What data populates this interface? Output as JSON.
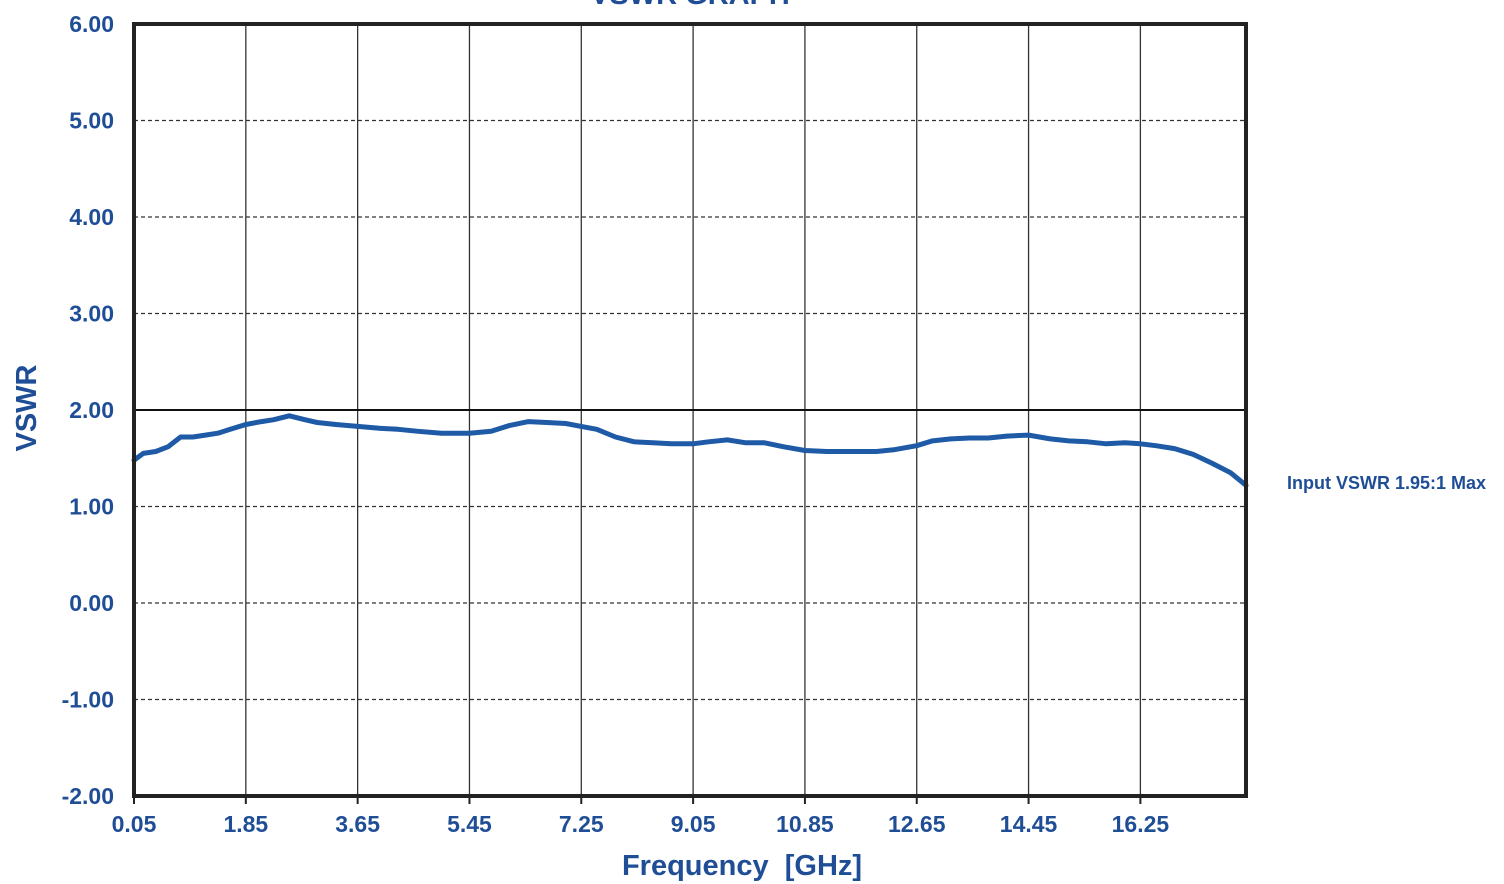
{
  "chart_data": {
    "type": "line",
    "title": "VSWR GRAPH",
    "xlabel": "Frequency  [GHz]",
    "ylabel": "VSWR",
    "xlim": [
      0.05,
      17.95
    ],
    "ylim": [
      -2.0,
      6.0
    ],
    "x_ticks": [
      "0.05",
      "1.85",
      "3.65",
      "5.45",
      "7.25",
      "9.05",
      "10.85",
      "12.65",
      "14.45",
      "16.25"
    ],
    "y_ticks": [
      "6.00",
      "5.00",
      "4.00",
      "3.00",
      "2.00",
      "1.00",
      "0.00",
      "-1.00",
      "-2.00"
    ],
    "grid": true,
    "limit_line": {
      "value": 2.0
    },
    "annotation": "Input VSWR 1.95:1 Max",
    "colors": {
      "series": "#1f5aa6",
      "text": "#1f4e96",
      "grid": "#333333",
      "frame": "#222222"
    },
    "series": [
      {
        "x": [
          0.05,
          0.2,
          0.4,
          0.6,
          0.8,
          1.0,
          1.2,
          1.4,
          1.6,
          1.85,
          2.1,
          2.3,
          2.55,
          2.8,
          3.0,
          3.3,
          3.65,
          4.0,
          4.3,
          4.6,
          5.0,
          5.45,
          5.8,
          6.1,
          6.4,
          6.7,
          7.0,
          7.25,
          7.5,
          7.8,
          8.1,
          8.4,
          8.7,
          9.05,
          9.3,
          9.6,
          9.9,
          10.2,
          10.5,
          10.85,
          11.2,
          11.6,
          12.0,
          12.3,
          12.65,
          12.9,
          13.2,
          13.5,
          13.8,
          14.1,
          14.45,
          14.8,
          15.1,
          15.4,
          15.7,
          16.0,
          16.25,
          16.5,
          16.8,
          17.1,
          17.4,
          17.7,
          17.95
        ],
        "y": [
          1.48,
          1.55,
          1.57,
          1.62,
          1.72,
          1.72,
          1.74,
          1.76,
          1.8,
          1.85,
          1.88,
          1.9,
          1.94,
          1.9,
          1.87,
          1.85,
          1.83,
          1.81,
          1.8,
          1.78,
          1.76,
          1.76,
          1.78,
          1.84,
          1.88,
          1.87,
          1.86,
          1.83,
          1.8,
          1.72,
          1.67,
          1.66,
          1.65,
          1.65,
          1.67,
          1.69,
          1.66,
          1.66,
          1.62,
          1.58,
          1.57,
          1.57,
          1.57,
          1.59,
          1.63,
          1.68,
          1.7,
          1.71,
          1.71,
          1.73,
          1.74,
          1.7,
          1.68,
          1.67,
          1.65,
          1.66,
          1.65,
          1.63,
          1.6,
          1.54,
          1.45,
          1.35,
          1.22
        ]
      }
    ]
  }
}
